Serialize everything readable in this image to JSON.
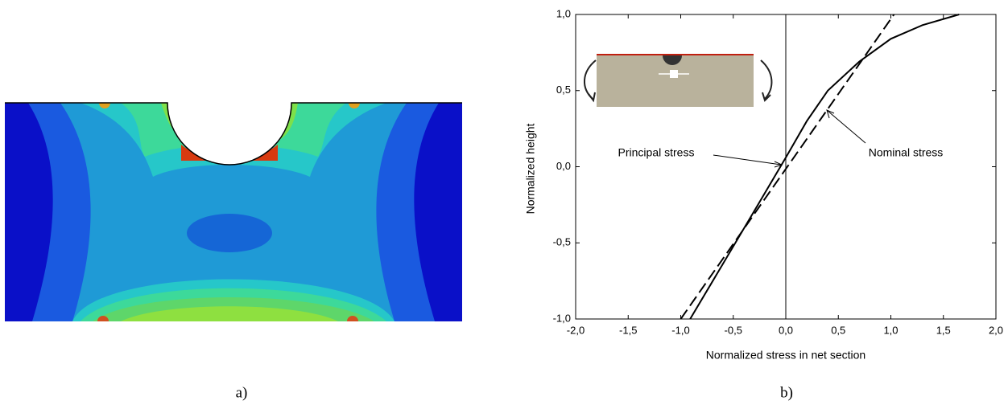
{
  "panel_a": {
    "label": "a)"
  },
  "chart_data": {
    "type": "line",
    "panel_label": "b)",
    "x_label": "Normalized stress in net section",
    "y_label": "Normalized height",
    "xlim": [
      -2.0,
      2.0
    ],
    "ylim": [
      -1.0,
      1.0
    ],
    "xticks": [
      {
        "value": -2.0,
        "label": "-2,0"
      },
      {
        "value": -1.5,
        "label": "-1,5"
      },
      {
        "value": -1.0,
        "label": "-1,0"
      },
      {
        "value": -0.5,
        "label": "-0,5"
      },
      {
        "value": 0.0,
        "label": "0,0"
      },
      {
        "value": 0.5,
        "label": "0,5"
      },
      {
        "value": 1.0,
        "label": "1,0"
      },
      {
        "value": 1.5,
        "label": "1,5"
      },
      {
        "value": 2.0,
        "label": "2,0"
      }
    ],
    "yticks": [
      {
        "value": -1.0,
        "label": "-1,0"
      },
      {
        "value": -0.5,
        "label": "-0,5"
      },
      {
        "value": 0.0,
        "label": "0,0"
      },
      {
        "value": 0.5,
        "label": "0,5"
      },
      {
        "value": 1.0,
        "label": "1,0"
      }
    ],
    "reference_line_x": 0.0,
    "series": [
      {
        "name": "Principal stress",
        "color": "#000000",
        "style": "solid",
        "x": [
          -0.91,
          -0.6,
          -0.3,
          0.0,
          0.2,
          0.4,
          0.7,
          1.0,
          1.3,
          1.65
        ],
        "values": [
          -1.0,
          -0.64,
          -0.29,
          0.06,
          0.3,
          0.5,
          0.69,
          0.84,
          0.93,
          1.0
        ]
      },
      {
        "name": "Nominal stress",
        "color": "#000000",
        "style": "dashed",
        "x": [
          -1.0,
          1.03
        ],
        "values": [
          -1.0,
          1.0
        ]
      }
    ]
  }
}
